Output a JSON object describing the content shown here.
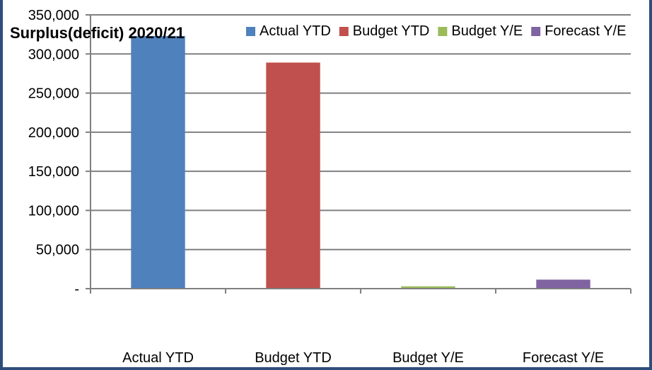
{
  "chart_data": {
    "type": "bar",
    "title": "Surplus(deficit) 2020/21",
    "categories": [
      "Actual YTD",
      "Budget YTD",
      "Budget Y/E",
      "Forecast Y/E"
    ],
    "series": [
      {
        "name": "Actual YTD",
        "color": "#4f81bd",
        "values": [
          323000,
          null,
          null,
          null
        ]
      },
      {
        "name": "Budget YTD",
        "color": "#c0504d",
        "values": [
          null,
          289000,
          null,
          null
        ]
      },
      {
        "name": "Budget Y/E",
        "color": "#9bbb59",
        "values": [
          null,
          null,
          3000,
          null
        ]
      },
      {
        "name": "Forecast Y/E",
        "color": "#8064a2",
        "values": [
          null,
          null,
          null,
          11500
        ]
      }
    ],
    "yticks": [
      {
        "value": 0,
        "label": "-"
      },
      {
        "value": 50000,
        "label": "50,000"
      },
      {
        "value": 100000,
        "label": "100,000"
      },
      {
        "value": 150000,
        "label": "150,000"
      },
      {
        "value": 200000,
        "label": "200,000"
      },
      {
        "value": 250000,
        "label": "250,000"
      },
      {
        "value": 300000,
        "label": "300,000"
      },
      {
        "value": 350000,
        "label": "350,000"
      }
    ],
    "ylim": [
      0,
      350000
    ],
    "xlabel": "",
    "ylabel": "",
    "grid": true,
    "legend_position": "top-right"
  }
}
